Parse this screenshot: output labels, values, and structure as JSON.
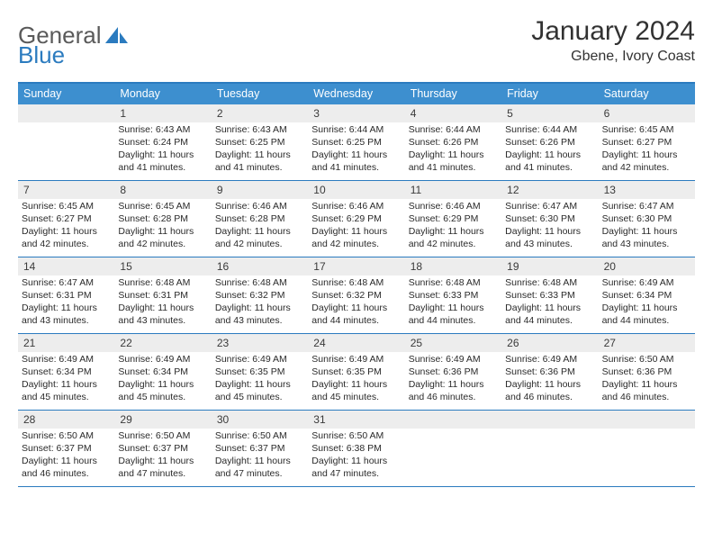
{
  "logo": {
    "word1": "General",
    "word2": "Blue"
  },
  "header": {
    "month": "January 2024",
    "location": "Gbene, Ivory Coast"
  },
  "colors": {
    "header_bar": "#3d8fcf",
    "rule": "#2b7bbf",
    "daynum_bg": "#ededed",
    "text": "#2a2a2a"
  },
  "dayNames": [
    "Sunday",
    "Monday",
    "Tuesday",
    "Wednesday",
    "Thursday",
    "Friday",
    "Saturday"
  ],
  "weeks": [
    [
      null,
      {
        "n": "1",
        "sr": "6:43 AM",
        "ss": "6:24 PM",
        "dl": "11 hours and 41 minutes."
      },
      {
        "n": "2",
        "sr": "6:43 AM",
        "ss": "6:25 PM",
        "dl": "11 hours and 41 minutes."
      },
      {
        "n": "3",
        "sr": "6:44 AM",
        "ss": "6:25 PM",
        "dl": "11 hours and 41 minutes."
      },
      {
        "n": "4",
        "sr": "6:44 AM",
        "ss": "6:26 PM",
        "dl": "11 hours and 41 minutes."
      },
      {
        "n": "5",
        "sr": "6:44 AM",
        "ss": "6:26 PM",
        "dl": "11 hours and 41 minutes."
      },
      {
        "n": "6",
        "sr": "6:45 AM",
        "ss": "6:27 PM",
        "dl": "11 hours and 42 minutes."
      }
    ],
    [
      {
        "n": "7",
        "sr": "6:45 AM",
        "ss": "6:27 PM",
        "dl": "11 hours and 42 minutes."
      },
      {
        "n": "8",
        "sr": "6:45 AM",
        "ss": "6:28 PM",
        "dl": "11 hours and 42 minutes."
      },
      {
        "n": "9",
        "sr": "6:46 AM",
        "ss": "6:28 PM",
        "dl": "11 hours and 42 minutes."
      },
      {
        "n": "10",
        "sr": "6:46 AM",
        "ss": "6:29 PM",
        "dl": "11 hours and 42 minutes."
      },
      {
        "n": "11",
        "sr": "6:46 AM",
        "ss": "6:29 PM",
        "dl": "11 hours and 42 minutes."
      },
      {
        "n": "12",
        "sr": "6:47 AM",
        "ss": "6:30 PM",
        "dl": "11 hours and 43 minutes."
      },
      {
        "n": "13",
        "sr": "6:47 AM",
        "ss": "6:30 PM",
        "dl": "11 hours and 43 minutes."
      }
    ],
    [
      {
        "n": "14",
        "sr": "6:47 AM",
        "ss": "6:31 PM",
        "dl": "11 hours and 43 minutes."
      },
      {
        "n": "15",
        "sr": "6:48 AM",
        "ss": "6:31 PM",
        "dl": "11 hours and 43 minutes."
      },
      {
        "n": "16",
        "sr": "6:48 AM",
        "ss": "6:32 PM",
        "dl": "11 hours and 43 minutes."
      },
      {
        "n": "17",
        "sr": "6:48 AM",
        "ss": "6:32 PM",
        "dl": "11 hours and 44 minutes."
      },
      {
        "n": "18",
        "sr": "6:48 AM",
        "ss": "6:33 PM",
        "dl": "11 hours and 44 minutes."
      },
      {
        "n": "19",
        "sr": "6:48 AM",
        "ss": "6:33 PM",
        "dl": "11 hours and 44 minutes."
      },
      {
        "n": "20",
        "sr": "6:49 AM",
        "ss": "6:34 PM",
        "dl": "11 hours and 44 minutes."
      }
    ],
    [
      {
        "n": "21",
        "sr": "6:49 AM",
        "ss": "6:34 PM",
        "dl": "11 hours and 45 minutes."
      },
      {
        "n": "22",
        "sr": "6:49 AM",
        "ss": "6:34 PM",
        "dl": "11 hours and 45 minutes."
      },
      {
        "n": "23",
        "sr": "6:49 AM",
        "ss": "6:35 PM",
        "dl": "11 hours and 45 minutes."
      },
      {
        "n": "24",
        "sr": "6:49 AM",
        "ss": "6:35 PM",
        "dl": "11 hours and 45 minutes."
      },
      {
        "n": "25",
        "sr": "6:49 AM",
        "ss": "6:36 PM",
        "dl": "11 hours and 46 minutes."
      },
      {
        "n": "26",
        "sr": "6:49 AM",
        "ss": "6:36 PM",
        "dl": "11 hours and 46 minutes."
      },
      {
        "n": "27",
        "sr": "6:50 AM",
        "ss": "6:36 PM",
        "dl": "11 hours and 46 minutes."
      }
    ],
    [
      {
        "n": "28",
        "sr": "6:50 AM",
        "ss": "6:37 PM",
        "dl": "11 hours and 46 minutes."
      },
      {
        "n": "29",
        "sr": "6:50 AM",
        "ss": "6:37 PM",
        "dl": "11 hours and 47 minutes."
      },
      {
        "n": "30",
        "sr": "6:50 AM",
        "ss": "6:37 PM",
        "dl": "11 hours and 47 minutes."
      },
      {
        "n": "31",
        "sr": "6:50 AM",
        "ss": "6:38 PM",
        "dl": "11 hours and 47 minutes."
      },
      null,
      null,
      null
    ]
  ],
  "labels": {
    "sunrise": "Sunrise:",
    "sunset": "Sunset:",
    "daylight": "Daylight:"
  }
}
